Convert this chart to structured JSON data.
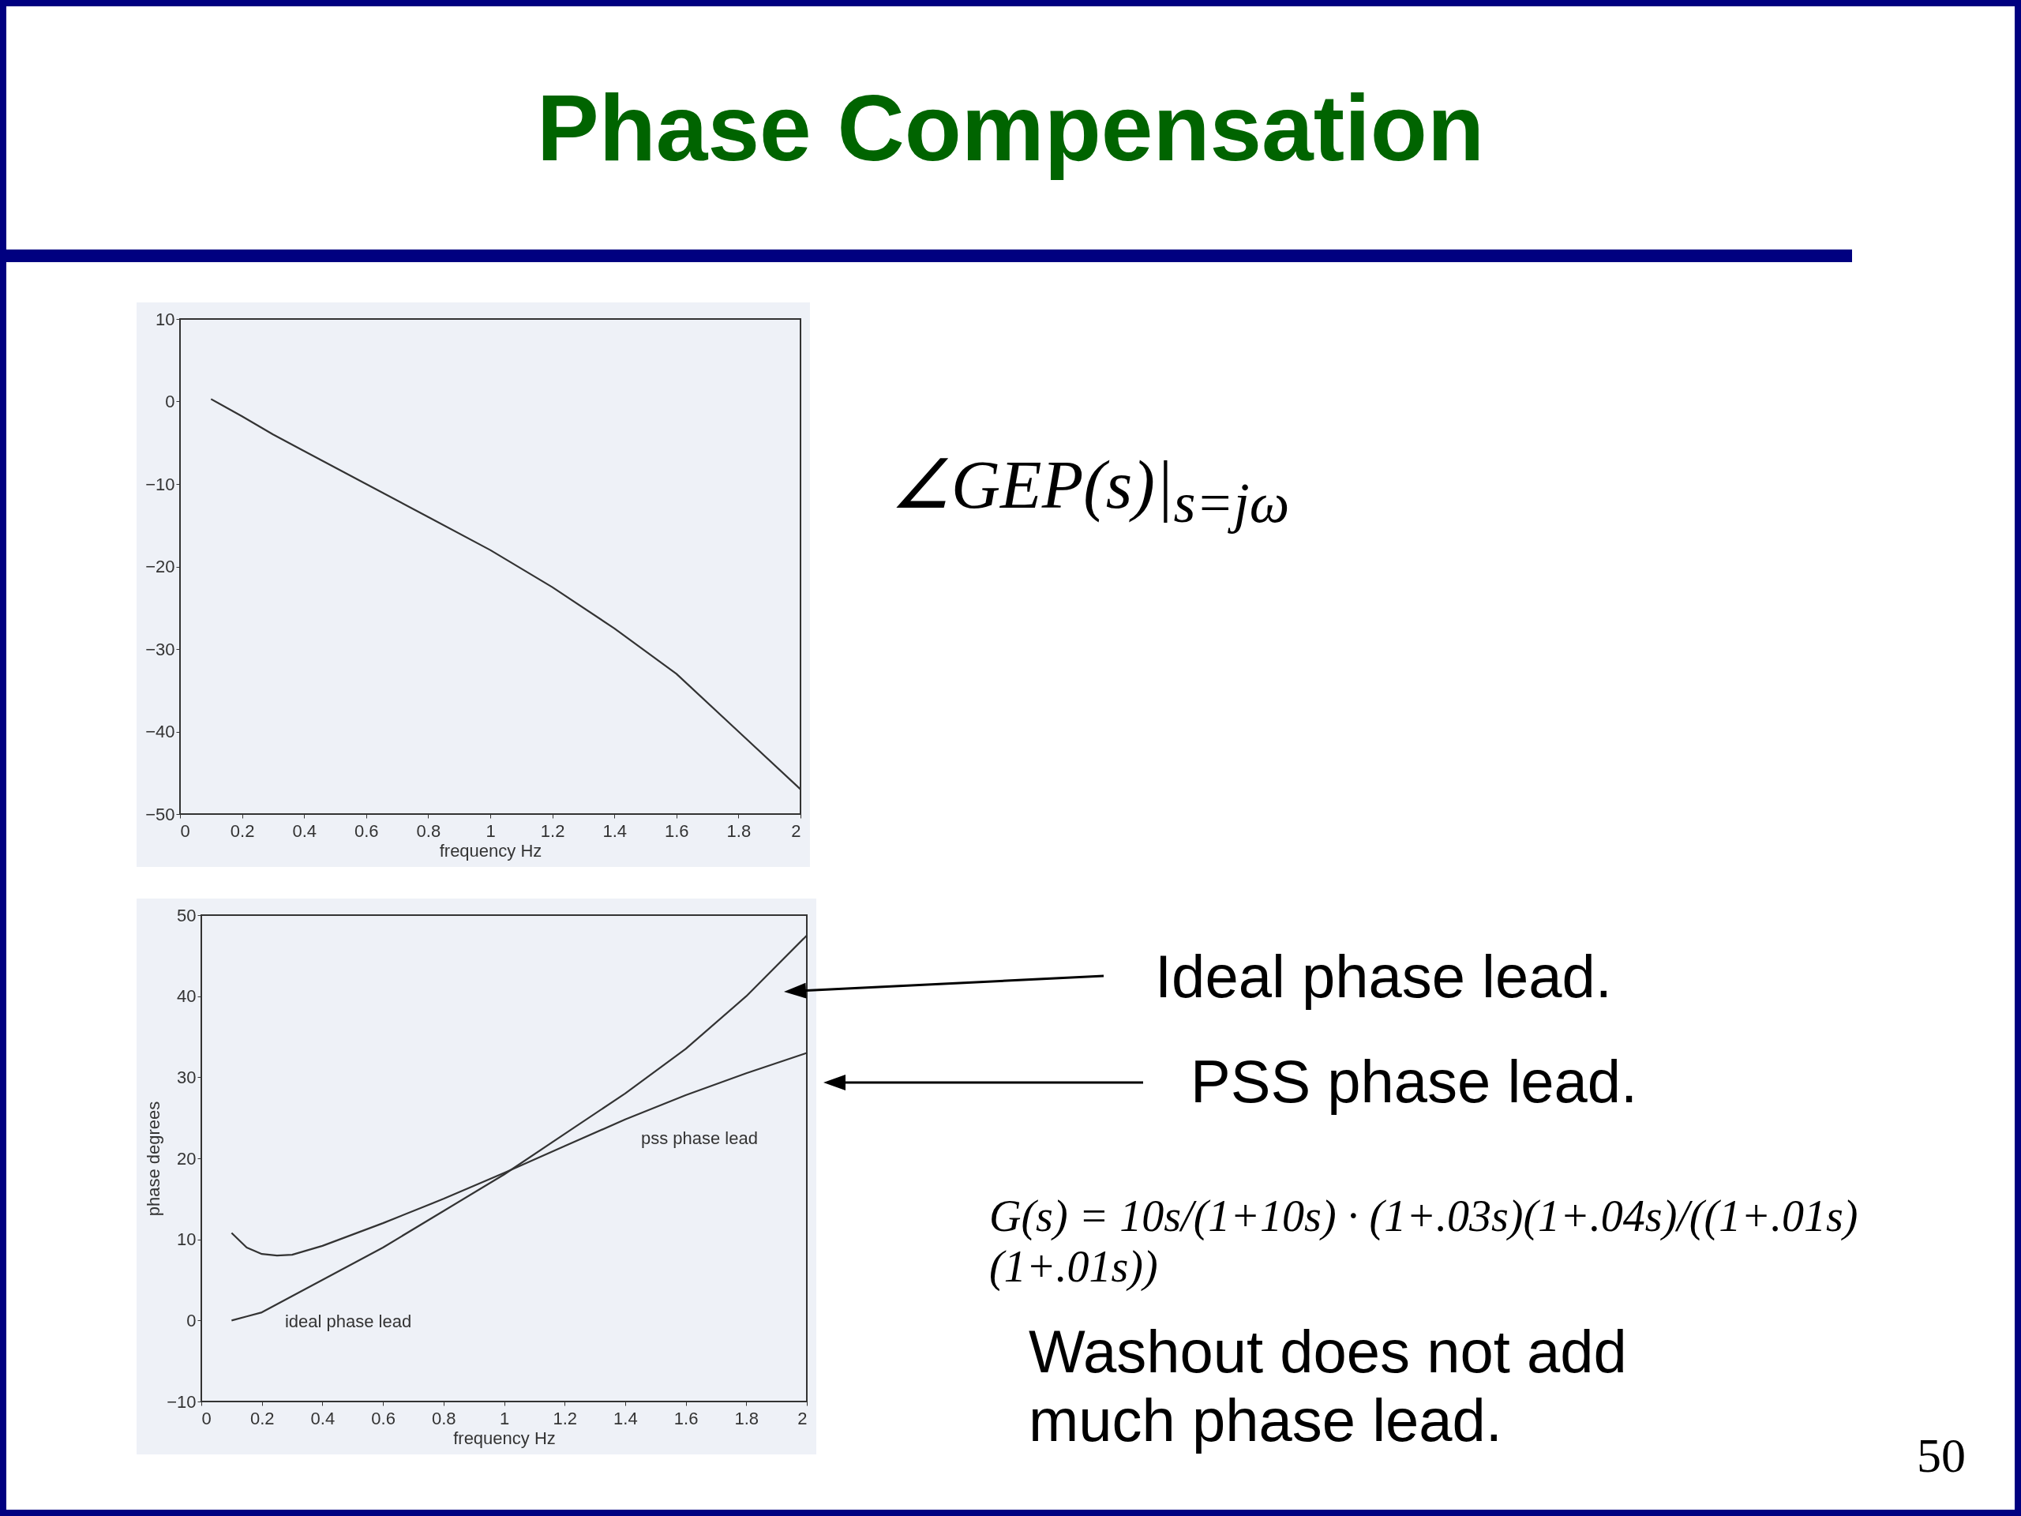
{
  "chart_data": [
    {
      "type": "line",
      "title": "Phase Compensation",
      "xlabel": "frequency Hz",
      "x": [
        0.1,
        0.2,
        0.3,
        0.4,
        0.6,
        0.8,
        1.0,
        1.2,
        1.4,
        1.6,
        1.8,
        2.0
      ],
      "series": [
        {
          "color": "#333333",
          "values": [
            0.3,
            -1.8,
            -4,
            -6,
            -10,
            -14,
            -18,
            -22.5,
            -27.5,
            -33,
            -40,
            -47
          ]
        }
      ],
      "xlim": [
        0,
        2
      ],
      "ylim": [
        -50,
        10
      ],
      "xticks": [
        0,
        0.2,
        0.4,
        0.6,
        0.8,
        1,
        1.2,
        1.4,
        1.6,
        1.8,
        2
      ],
      "yticks": [
        -50,
        -40,
        -30,
        -20,
        -10,
        0,
        10
      ],
      "annotations": [
        "∠GEP(s)|$_{s=jω}$"
      ]
    },
    {
      "type": "line",
      "xlabel": "frequency Hz",
      "ylabel": "phase degrees",
      "x": [
        0.1,
        0.15,
        0.2,
        0.25,
        0.3,
        0.4,
        0.6,
        0.8,
        1.0,
        1.2,
        1.4,
        1.6,
        1.8,
        2.0
      ],
      "series": [
        {
          "name": "ideal phase lead",
          "color": "#333333",
          "values": [
            0,
            0.5,
            1,
            2,
            3,
            5,
            9,
            13.5,
            18,
            23,
            28,
            33.5,
            40,
            47.5
          ]
        },
        {
          "name": "pss phase lead",
          "color": "#333333",
          "values": [
            10.8,
            9,
            8.2,
            8,
            8.1,
            9.2,
            12,
            15,
            18.2,
            21.5,
            24.8,
            27.8,
            30.5,
            33
          ]
        }
      ],
      "xlim": [
        0,
        2
      ],
      "ylim": [
        -10,
        50
      ],
      "xticks": [
        0,
        0.2,
        0.4,
        0.6,
        0.8,
        1,
        1.2,
        1.4,
        1.6,
        1.8,
        2
      ],
      "yticks": [
        -10,
        0,
        10,
        20,
        30,
        40,
        50
      ],
      "annotations": [
        "Ideal phase lead.",
        "PSS phase lead.",
        "G(s) = 10s/(1+10s) · (1+.03s)(1+.04s)/((1+.01s)(1+.01s))",
        "Washout does not add much phase lead.",
        "50"
      ]
    }
  ]
}
